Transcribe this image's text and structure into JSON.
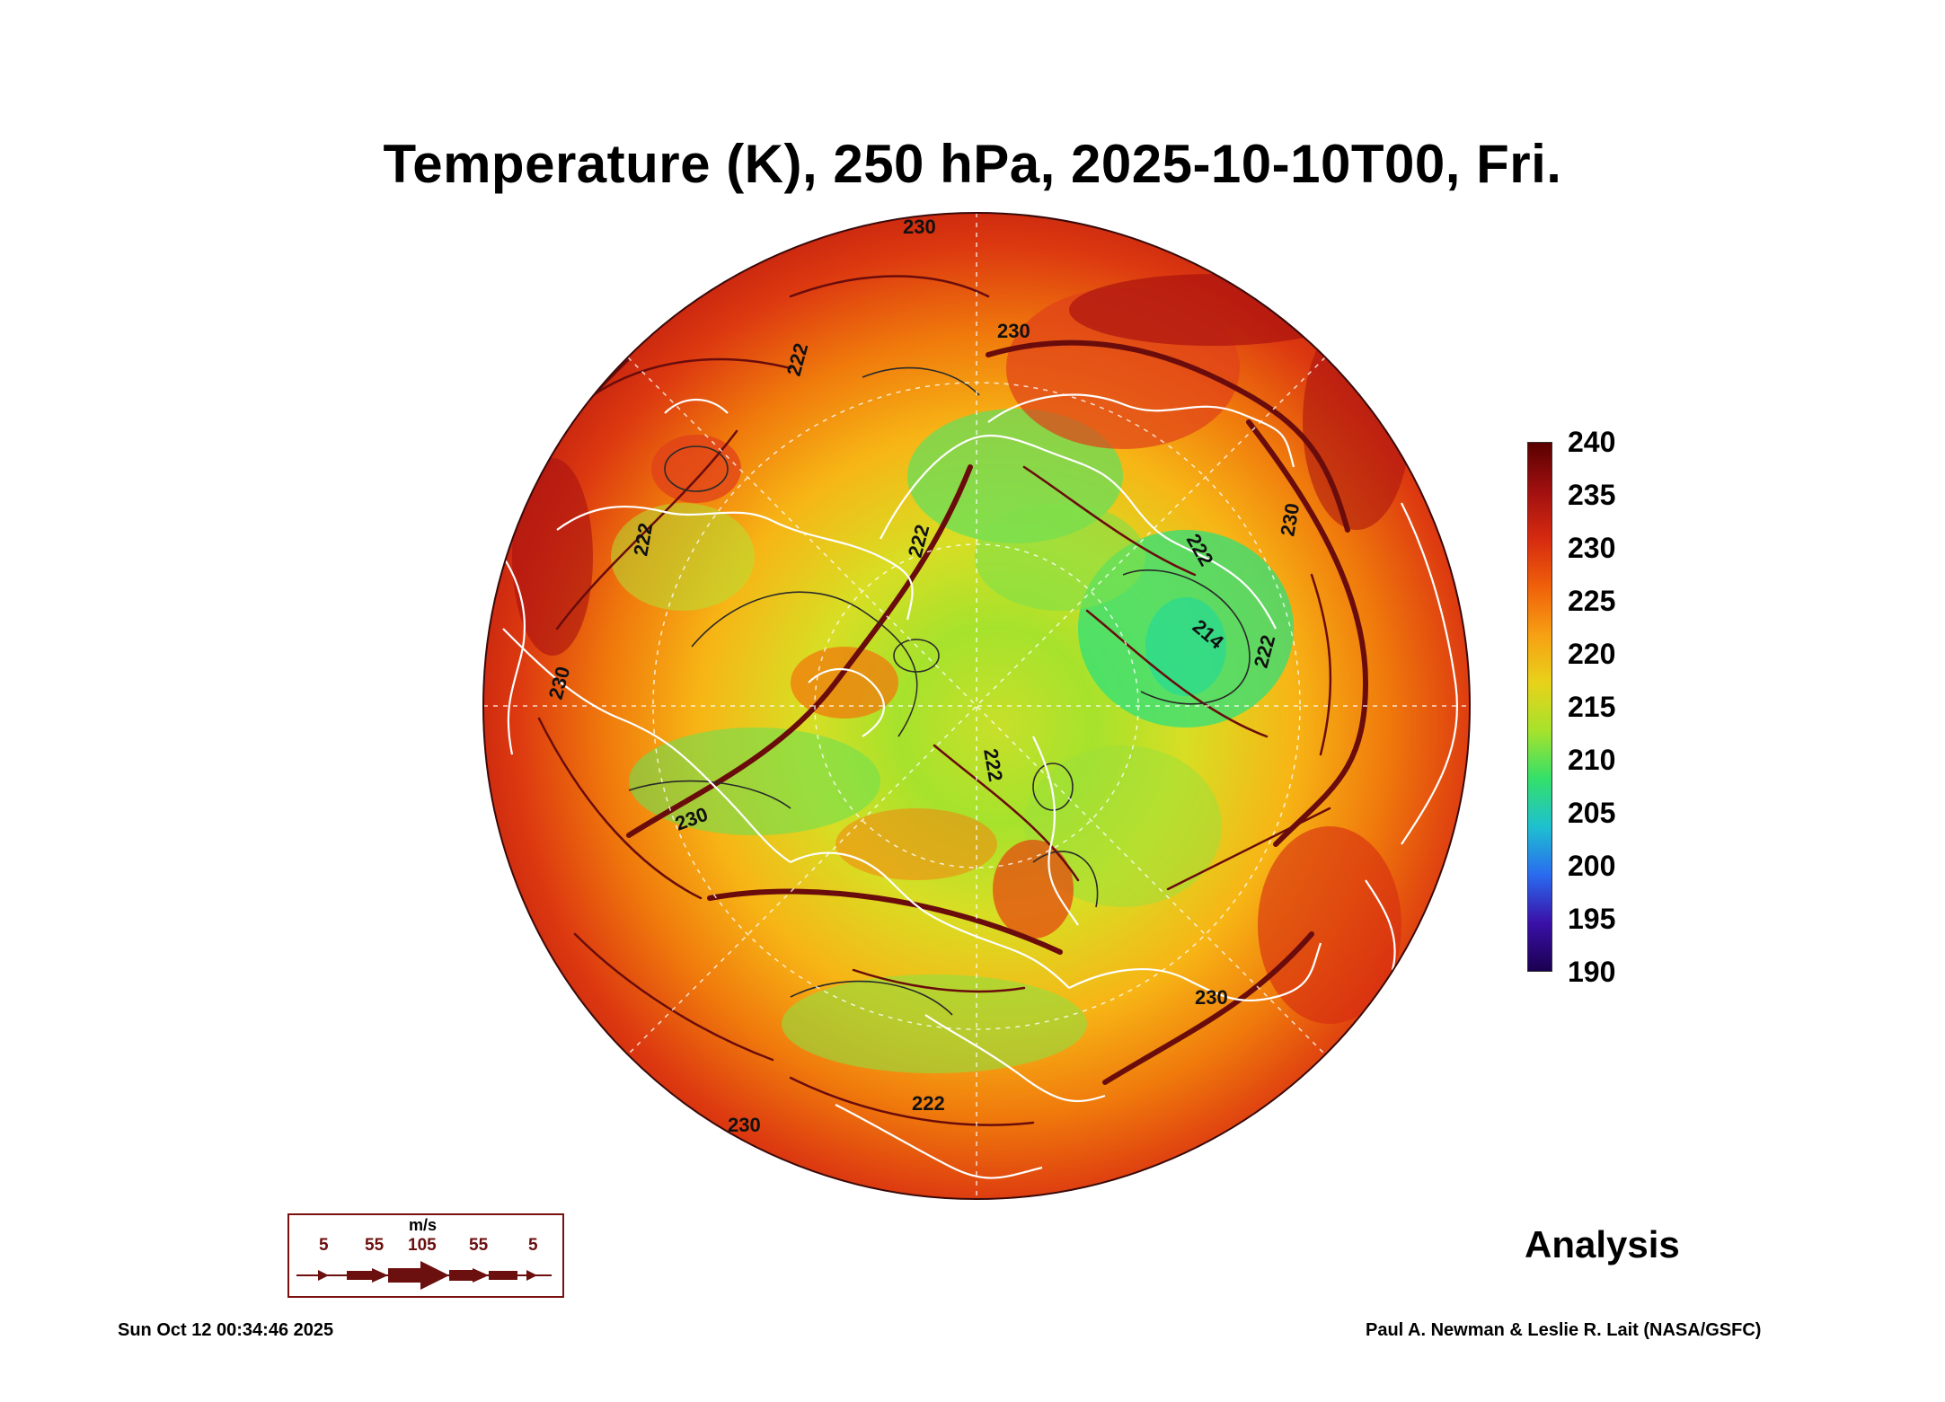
{
  "title": "Temperature (K), 250 hPa, 2025-10-10T00, Fri.",
  "colorbar": {
    "unit": "K",
    "labels": [
      "240",
      "235",
      "230",
      "225",
      "220",
      "215",
      "210",
      "205",
      "200",
      "195",
      "190"
    ],
    "colors": [
      "#5a0000",
      "#a01010",
      "#d62a10",
      "#f0600a",
      "#f7a013",
      "#e8d21a",
      "#a6e22c",
      "#33e06a",
      "#1ec0d0",
      "#2a6bef",
      "#3a10a8",
      "#1a0050"
    ]
  },
  "contour_labels": [
    "230",
    "230",
    "222",
    "222",
    "222",
    "230",
    "214",
    "222",
    "222",
    "230",
    "230",
    "222",
    "222",
    "230",
    "230"
  ],
  "wind_legend": {
    "unit": "m/s",
    "values": [
      "5",
      "55",
      "105",
      "55",
      "5"
    ],
    "color": "#6b0f0f"
  },
  "analysis_label": "Analysis",
  "timestamp": "Sun Oct 12 00:34:46 2025",
  "credit": "Paul A. Newman & Leslie R. Lait (NASA/GSFC)"
}
